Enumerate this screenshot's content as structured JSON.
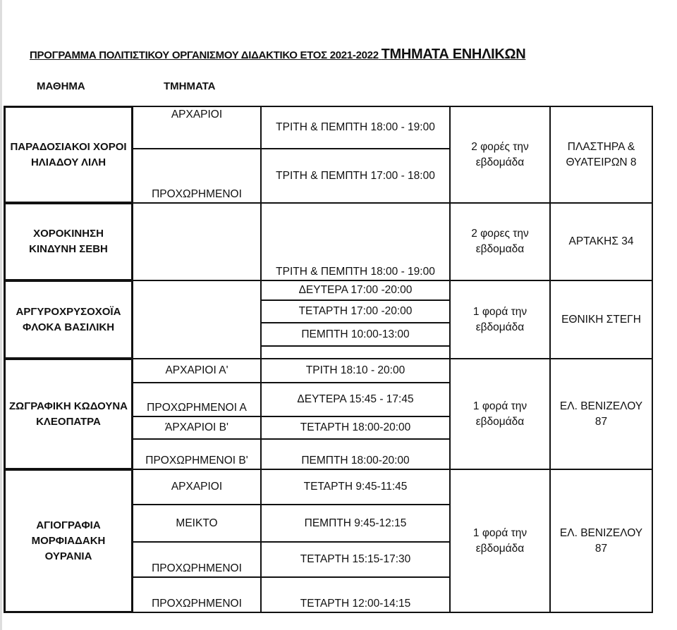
{
  "title_part1": "ΠΡΟΓΡΑΜΜΑ ΠΟΛΙΤΙΣΤΙΚΟΥ ΟΡΓΑΝΙΣΜΟΥ ΔΙΔΑΚΤΙΚΟ ΕΤΟΣ 2021-2022",
  "title_part2": "ΤΜΗΜΑΤΑ ΕΝΗΛΙΚΩΝ",
  "headers": {
    "course": "ΜΑΘΗΜΑ",
    "groups": "ΤΜΗΜΑΤΑ"
  },
  "sections": [
    {
      "course": "ΠΑΡΑΔΟΣΙΑΚΟΙ ΧΟΡΟΙ ΗΛΙΑΔΟΥ ΛΙΛΗ",
      "frequency": "2 φορές την εβδομάδα",
      "location": "ΠΛΑΣΤΗΡΑ & ΘΥΑΤΕΙΡΩΝ 8",
      "groups": [
        "ΑΡΧΑΡΙΟΙ",
        "ΠΡΟΧΩΡΗΜΕΝΟΙ"
      ],
      "times": [
        "ΤΡΙΤΗ & ΠΕΜΠΤΗ 18:00 - 19:00",
        "ΤΡΙΤΗ & ΠΕΜΠΤΗ 17:00 - 18:00"
      ]
    },
    {
      "course": "ΧΟΡΟΚΙΝΗΣΗ ΚΙΝΔΥΝΗ ΣΕΒΗ",
      "frequency": "2 φορες την εβδομαδα",
      "location": "ΑΡΤΑΚΗΣ 34",
      "groups": [
        ""
      ],
      "times": [
        "ΤΡΙΤΗ & ΠΕΜΠΤΗ 18:00 - 19:00"
      ]
    },
    {
      "course": "ΑΡΓΥΡΟΧΡΥΣΟΧΟΪΑ ΦΛΟΚΑ ΒΑΣΙΛΙΚΗ",
      "frequency": "1 φορά την εβδομάδα",
      "location": "ΕΘΝΙΚΗ ΣΤΕΓΗ",
      "groups": [
        ""
      ],
      "times": [
        "ΔΕΥΤΕΡΑ 17:00 -20:00",
        "ΤΕΤΑΡΤΗ 17:00 -20:00",
        "ΠΕΜΠΤΗ 10:00-13:00",
        ""
      ]
    },
    {
      "course": "ΖΩΓΡΑΦΙΚΗ ΚΩΔΟΥΝΑ ΚΛΕΟΠΑΤΡΑ",
      "frequency": "1 φορά την εβδομάδα",
      "location": "ΕΛ. ΒΕΝΙΖΕΛΟΥ 87",
      "groups": [
        "ΑΡΧΑΡΙΟΙ Α'",
        "ΠΡΟΧΩΡΗΜΕΝΟΙ Α",
        "ΆΡΧΑΡΙΟΙ Β'",
        "ΠΡΟΧΩΡΗΜΕΝΟΙ Β'"
      ],
      "times": [
        "ΤΡΙΤΗ 18:10 - 20:00",
        "ΔΕΥΤΕΡΑ 15:45 - 17:45",
        "ΤΕΤΑΡΤΗ 18:00-20:00",
        "ΠΕΜΠΤΗ 18:00-20:00"
      ]
    },
    {
      "course": "ΑΓΙΟΓΡΑΦΙΑ ΜΟΡΦΙΑΔΑΚΗ ΟΥΡΑΝΙΑ",
      "frequency": "1 φορά την εβδομάδα",
      "location": "ΕΛ. ΒΕΝΙΖΕΛΟΥ 87",
      "groups": [
        "ΑΡΧΑΡΙΟΙ",
        "ΜΕΙΚΤΟ",
        "ΠΡΟΧΩΡΗΜΕΝΟΙ",
        "ΠΡΟΧΩΡΗΜΕΝΟΙ"
      ],
      "times": [
        "ΤΕΤΑΡΤΗ 9:45-11:45",
        "ΠΕΜΠΤΗ 9:45-12:15",
        "ΤΕΤΑΡΤΗ 15:15-17:30",
        "ΤΕΤΑΡΤΗ 12:00-14:15"
      ]
    }
  ]
}
